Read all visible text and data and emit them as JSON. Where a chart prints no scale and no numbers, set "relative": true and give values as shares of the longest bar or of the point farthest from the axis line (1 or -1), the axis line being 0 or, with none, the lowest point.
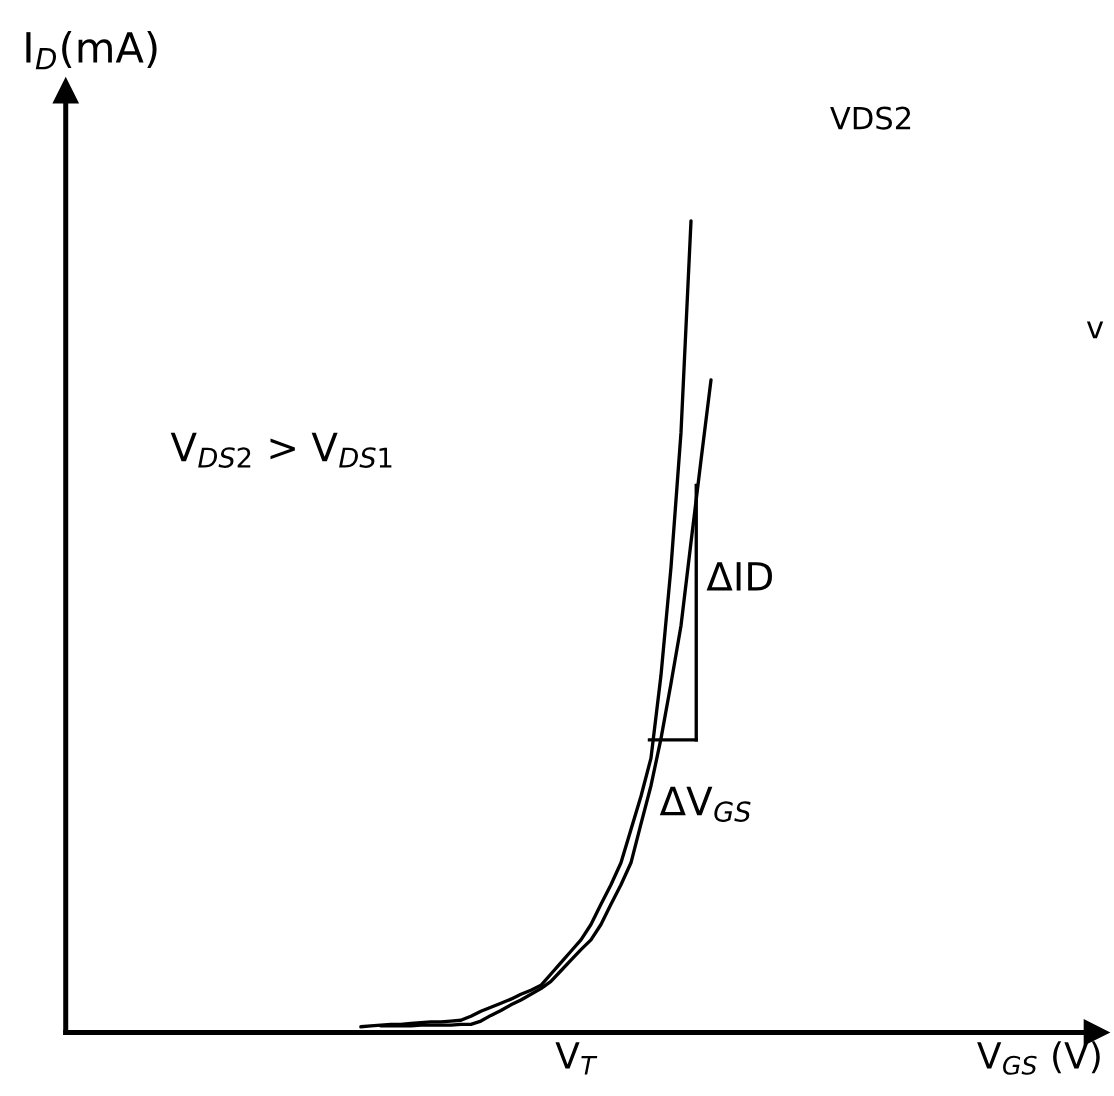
{
  "chart_data": {
    "type": "line",
    "relative": true,
    "xlabel": "V$_{GS}$ (V)",
    "ylabel": "I$_{D}$(mA)",
    "categories": [
      null,
      null,
      null,
      null,
      null,
      null,
      null,
      null,
      null,
      null,
      null,
      null,
      null,
      null,
      null,
      null,
      null,
      null,
      null,
      null,
      null,
      null,
      null,
      null,
      null,
      null,
      null,
      null,
      null,
      null,
      null,
      null,
      null,
      null,
      null,
      null,
      null,
      null,
      null,
      null,
      null,
      null,
      null,
      null,
      null,
      null,
      null,
      null,
      null,
      null,
      null,
      null,
      null,
      null,
      null,
      null,
      null,
      null,
      null,
      null,
      null,
      null,
      null,
      null,
      null,
      null,
      null,
      null,
      null,
      null,
      null,
      null,
      null,
      null,
      null,
      null,
      null,
      null,
      null,
      null,
      null,
      null,
      null,
      null,
      null,
      null,
      null,
      null,
      null,
      null,
      null,
      null,
      null,
      null,
      null,
      null,
      null,
      null,
      null,
      null,
      null,
      null,
      null
    ],
    "series": [
      {
        "name": "VDS2",
        "color": "#000000",
        "values": [
          null,
          null,
          null,
          null,
          null,
          null,
          null,
          null,
          null,
          null,
          null,
          null,
          null,
          null,
          null,
          null,
          null,
          null,
          null,
          null,
          null,
          null,
          null,
          null,
          null,
          null,
          null,
          null,
          null,
          0.007,
          0.008,
          0.009,
          0.01,
          0.01,
          0.011,
          0.012,
          0.013,
          0.013,
          0.014,
          0.015,
          0.02,
          0.026,
          0.031,
          0.036,
          0.041,
          0.047,
          0.052,
          0.058,
          0.072,
          0.086,
          0.1,
          0.114,
          0.133,
          0.158,
          0.182,
          0.209,
          0.25,
          0.291,
          0.338,
          0.44,
          0.573,
          0.739,
          1,
          null,
          null,
          null,
          null,
          null,
          null,
          null,
          null,
          null,
          null,
          null,
          null,
          null,
          null,
          null,
          null,
          null,
          null,
          null,
          null,
          null,
          null,
          null,
          null,
          null,
          null,
          null,
          null,
          null,
          null,
          null,
          null,
          null,
          null,
          null,
          null,
          null,
          null,
          null,
          null
        ]
      },
      {
        "name": "v",
        "color": "#000000",
        "values": [
          null,
          null,
          null,
          null,
          null,
          null,
          null,
          null,
          null,
          null,
          null,
          null,
          null,
          null,
          null,
          null,
          null,
          null,
          null,
          null,
          null,
          null,
          null,
          null,
          null,
          null,
          null,
          null,
          null,
          null,
          null,
          0.008,
          0.008,
          0.008,
          0.008,
          0.009,
          0.009,
          0.009,
          0.009,
          0.01,
          0.01,
          0.014,
          0.021,
          0.027,
          0.034,
          0.04,
          0.047,
          0.054,
          0.063,
          0.076,
          0.089,
          0.102,
          0.114,
          0.133,
          0.158,
          0.182,
          0.209,
          0.257,
          0.304,
          0.362,
          0.43,
          0.501,
          0.604,
          0.705,
          0.804,
          null,
          null,
          null,
          null,
          null,
          null,
          null,
          null,
          null,
          null,
          null,
          null,
          null,
          null,
          null,
          null,
          null,
          null,
          null,
          null,
          null,
          null,
          null,
          null,
          null,
          null,
          null,
          null,
          null,
          null,
          null,
          null,
          null,
          null,
          null,
          null,
          null,
          null
        ]
      }
    ],
    "annotations": [
      "V$_{DS2}$ > V$_{DS1}$",
      "ΔID",
      "ΔV$_{GS}$",
      "V$_{T}$"
    ]
  }
}
